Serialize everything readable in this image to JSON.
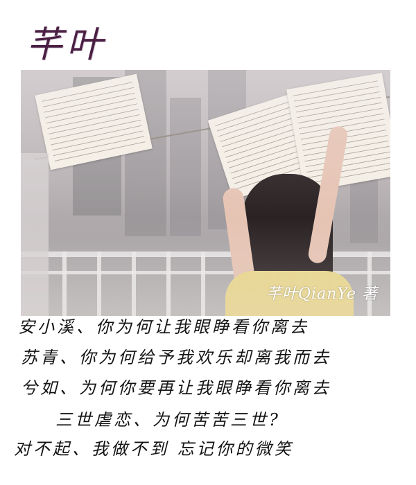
{
  "title": "芊叶",
  "photo": {
    "signature": "芊叶QianYe 著"
  },
  "poem": {
    "lines": [
      "安小溪、你为何让我眼睁看你离去",
      "苏青、你为何给予我欢乐却离我而去",
      "兮如、为何你要再让我眼睁看你离去",
      "三世虐恋、为何苦苦三世?",
      "对不起、我做不到    忘记你的微笑"
    ]
  },
  "colors": {
    "title": "#4b1f44",
    "text": "#141414",
    "signature": "#ffffff"
  }
}
